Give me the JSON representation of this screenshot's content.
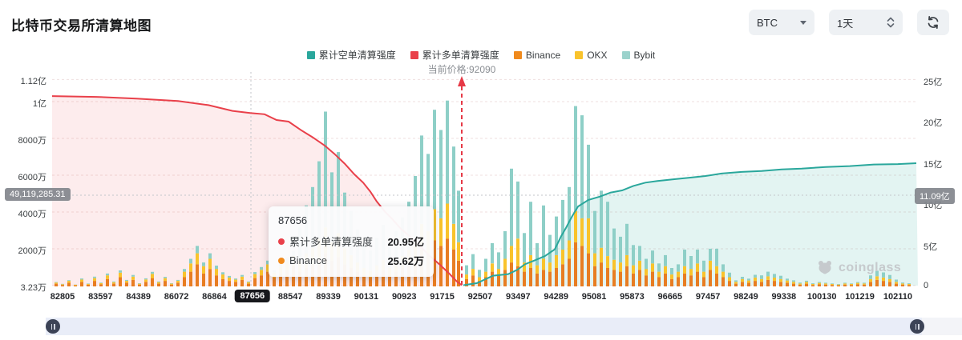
{
  "header": {
    "title": "比特币交易所清算地图",
    "symbol": "BTC",
    "interval": "1天"
  },
  "legend": [
    {
      "label": "累计空单清算强度",
      "color": "#2aa79c"
    },
    {
      "label": "累计多单清算强度",
      "color": "#e9404a"
    },
    {
      "label": "Binance",
      "color": "#f08a1d"
    },
    {
      "label": "OKX",
      "color": "#f9c32c"
    },
    {
      "label": "Bybit",
      "color": "#9bd2cc"
    }
  ],
  "current_price": {
    "value": 92090,
    "label": "当前价格:92090",
    "line_color": "#e63946"
  },
  "crosshair": {
    "x_label": "87656",
    "left_badge": "49,119,285.31",
    "right_badge": "11.09亿"
  },
  "tooltip": {
    "title": "87656",
    "rows": [
      {
        "label": "累计多单清算强度",
        "value": "20.95亿",
        "color": "#e9404a"
      },
      {
        "label": "Binance",
        "value": "25.62万",
        "color": "#f08a1d"
      }
    ]
  },
  "watermark": "coinglass",
  "chart_data": {
    "type": "bar",
    "subtype": "stacked-bars-plus-cumulative-lines",
    "x_axis": {
      "labels": [
        "82805",
        "83597",
        "84389",
        "86072",
        "86864",
        "87656",
        "88547",
        "89339",
        "90131",
        "90923",
        "91715",
        "92507",
        "93497",
        "94289",
        "95081",
        "95873",
        "96665",
        "97457",
        "98249",
        "99338",
        "100130",
        "101219",
        "102110"
      ],
      "highlighted_label": "87656"
    },
    "left_axis": {
      "unit": "万",
      "ticks": [
        {
          "label": "1.12亿",
          "v": 11200
        },
        {
          "label": "1亿",
          "v": 10000
        },
        {
          "label": "8000万",
          "v": 8000
        },
        {
          "label": "6000万",
          "v": 6000
        },
        {
          "label": "4000万",
          "v": 4000
        },
        {
          "label": "2000万",
          "v": 2000
        },
        {
          "label": "3.23万",
          "v": 3.23
        }
      ]
    },
    "right_axis": {
      "unit": "亿",
      "ticks": [
        {
          "label": "25亿",
          "v": 25
        },
        {
          "label": "20亿",
          "v": 20
        },
        {
          "label": "15亿",
          "v": 15
        },
        {
          "label": "10亿",
          "v": 10
        },
        {
          "label": "5亿",
          "v": 5
        },
        {
          "label": "0",
          "v": 0
        }
      ]
    },
    "lines": {
      "cumulative_long": {
        "name": "累计多单清算强度",
        "color": "#e9404a",
        "axis": "right",
        "unit": "亿",
        "points": [
          [
            0,
            23.0
          ],
          [
            55,
            22.9
          ],
          [
            105,
            22.7
          ],
          [
            157,
            22.4
          ],
          [
            195,
            21.9
          ],
          [
            225,
            21.2
          ],
          [
            247,
            20.95
          ],
          [
            265,
            20.8
          ],
          [
            280,
            20.1
          ],
          [
            295,
            19.9
          ],
          [
            310,
            18.9
          ],
          [
            325,
            18.0
          ],
          [
            340,
            17.0
          ],
          [
            352,
            16.0
          ],
          [
            365,
            14.8
          ],
          [
            377,
            13.5
          ],
          [
            388,
            12.5
          ],
          [
            397,
            11.4
          ],
          [
            405,
            10.2
          ],
          [
            415,
            9.0
          ],
          [
            425,
            8.0
          ],
          [
            435,
            6.9
          ],
          [
            447,
            5.9
          ],
          [
            459,
            4.8
          ],
          [
            471,
            3.6
          ],
          [
            483,
            2.6
          ],
          [
            495,
            1.5
          ],
          [
            505,
            0.5
          ],
          [
            511,
            0.05
          ]
        ]
      },
      "cumulative_short": {
        "name": "累计空单清算强度",
        "color": "#2aa79c",
        "axis": "right",
        "unit": "亿",
        "points": [
          [
            513,
            0.05
          ],
          [
            530,
            0.3
          ],
          [
            550,
            1.2
          ],
          [
            569,
            1.4
          ],
          [
            580,
            1.9
          ],
          [
            590,
            2.6
          ],
          [
            603,
            3.1
          ],
          [
            615,
            3.6
          ],
          [
            627,
            4.4
          ],
          [
            635,
            6.0
          ],
          [
            641,
            7.0
          ],
          [
            648,
            8.3
          ],
          [
            656,
            9.6
          ],
          [
            669,
            10.4
          ],
          [
            683,
            10.8
          ],
          [
            697,
            11.3
          ],
          [
            711,
            11.55
          ],
          [
            725,
            12.1
          ],
          [
            740,
            12.5
          ],
          [
            755,
            12.7
          ],
          [
            775,
            12.9
          ],
          [
            795,
            13.1
          ],
          [
            815,
            13.3
          ],
          [
            835,
            13.6
          ],
          [
            860,
            13.8
          ],
          [
            885,
            13.9
          ],
          [
            910,
            14.1
          ],
          [
            935,
            14.2
          ],
          [
            965,
            14.4
          ],
          [
            995,
            14.5
          ],
          [
            1025,
            14.7
          ],
          [
            1055,
            14.75
          ],
          [
            1078,
            14.85
          ]
        ]
      }
    },
    "bars_unit": "万",
    "bars_series_order": [
      "Binance",
      "OKX",
      "Bybit"
    ],
    "bars": [
      [
        5,
        150,
        60,
        30
      ],
      [
        13,
        80,
        40,
        20
      ],
      [
        21,
        200,
        100,
        40
      ],
      [
        29,
        60,
        30,
        10
      ],
      [
        37,
        250,
        120,
        60
      ],
      [
        45,
        90,
        50,
        20
      ],
      [
        53,
        300,
        150,
        80
      ],
      [
        61,
        120,
        60,
        30
      ],
      [
        69,
        400,
        200,
        100
      ],
      [
        77,
        150,
        80,
        40
      ],
      [
        85,
        500,
        250,
        120
      ],
      [
        93,
        200,
        100,
        50
      ],
      [
        101,
        350,
        180,
        90
      ],
      [
        109,
        100,
        50,
        25
      ],
      [
        117,
        250,
        130,
        60
      ],
      [
        125,
        450,
        230,
        110
      ],
      [
        133,
        150,
        80,
        40
      ],
      [
        141,
        300,
        150,
        70
      ],
      [
        149,
        100,
        50,
        25
      ],
      [
        157,
        200,
        100,
        50
      ],
      [
        165,
        500,
        300,
        150
      ],
      [
        173,
        800,
        450,
        250
      ],
      [
        181,
        1200,
        600,
        400
      ],
      [
        189,
        700,
        400,
        200
      ],
      [
        197,
        950,
        550,
        300
      ],
      [
        205,
        600,
        350,
        180
      ],
      [
        213,
        400,
        250,
        120
      ],
      [
        221,
        300,
        180,
        90
      ],
      [
        229,
        250,
        120,
        60
      ],
      [
        237,
        350,
        180,
        90
      ],
      [
        245,
        150,
        80,
        40
      ],
      [
        253,
        450,
        220,
        110
      ],
      [
        261,
        600,
        300,
        150
      ],
      [
        269,
        800,
        400,
        200
      ],
      [
        277,
        500,
        250,
        130
      ],
      [
        285,
        700,
        350,
        180
      ],
      [
        293,
        900,
        450,
        230
      ],
      [
        301,
        1100,
        550,
        280
      ],
      [
        309,
        800,
        600,
        1800
      ],
      [
        317,
        1000,
        800,
        2600
      ],
      [
        325,
        1200,
        900,
        3300
      ],
      [
        333,
        1500,
        1100,
        4200
      ],
      [
        341,
        1800,
        1400,
        6300
      ],
      [
        349,
        1400,
        1000,
        3800
      ],
      [
        357,
        1600,
        1300,
        4400
      ],
      [
        365,
        1200,
        900,
        3000
      ],
      [
        373,
        1000,
        700,
        2400
      ],
      [
        381,
        800,
        500,
        1800
      ],
      [
        389,
        600,
        400,
        1300
      ],
      [
        397,
        500,
        350,
        1100
      ],
      [
        405,
        700,
        450,
        1500
      ],
      [
        413,
        900,
        550,
        1900
      ],
      [
        421,
        600,
        400,
        1300
      ],
      [
        429,
        800,
        500,
        1700
      ],
      [
        437,
        1000,
        650,
        2100
      ],
      [
        445,
        1200,
        800,
        2600
      ],
      [
        453,
        1500,
        1000,
        3500
      ],
      [
        461,
        2000,
        1400,
        4800
      ],
      [
        469,
        1800,
        1200,
        4200
      ],
      [
        477,
        2500,
        1700,
        5400
      ],
      [
        485,
        2200,
        1500,
        4800
      ],
      [
        493,
        2600,
        1900,
        5600
      ],
      [
        501,
        2000,
        1400,
        4200
      ],
      [
        507,
        1400,
        1000,
        2800
      ],
      [
        517,
        400,
        250,
        500
      ],
      [
        525,
        600,
        350,
        800
      ],
      [
        533,
        300,
        200,
        400
      ],
      [
        541,
        500,
        300,
        700
      ],
      [
        549,
        800,
        450,
        1100
      ],
      [
        557,
        600,
        350,
        900
      ],
      [
        565,
        900,
        600,
        1500
      ],
      [
        573,
        1300,
        900,
        4200
      ],
      [
        581,
        1100,
        1500,
        3100
      ],
      [
        589,
        800,
        500,
        1600
      ],
      [
        597,
        1000,
        700,
        2900
      ],
      [
        605,
        700,
        450,
        1200
      ],
      [
        613,
        900,
        600,
        2900
      ],
      [
        621,
        800,
        500,
        1500
      ],
      [
        629,
        1000,
        700,
        2100
      ],
      [
        637,
        1200,
        800,
        2700
      ],
      [
        645,
        1500,
        1000,
        2900
      ],
      [
        653,
        2400,
        1700,
        5700
      ],
      [
        661,
        2200,
        1500,
        5600
      ],
      [
        669,
        1800,
        1900,
        4000
      ],
      [
        677,
        1100,
        700,
        2300
      ],
      [
        685,
        1300,
        800,
        3100
      ],
      [
        693,
        1000,
        650,
        2950
      ],
      [
        701,
        900,
        550,
        1700
      ],
      [
        709,
        800,
        500,
        1400
      ],
      [
        717,
        1100,
        600,
        1700
      ],
      [
        725,
        700,
        450,
        1100
      ],
      [
        733,
        900,
        500,
        800
      ],
      [
        741,
        600,
        350,
        550
      ],
      [
        749,
        800,
        450,
        700
      ],
      [
        757,
        500,
        300,
        450
      ],
      [
        765,
        700,
        400,
        600
      ],
      [
        773,
        400,
        250,
        350
      ],
      [
        781,
        500,
        300,
        400
      ],
      [
        789,
        700,
        400,
        900
      ],
      [
        797,
        600,
        350,
        700
      ],
      [
        805,
        800,
        450,
        750
      ],
      [
        813,
        500,
        300,
        600
      ],
      [
        821,
        900,
        500,
        650
      ],
      [
        829,
        700,
        400,
        950
      ],
      [
        837,
        500,
        300,
        400
      ],
      [
        845,
        300,
        200,
        250
      ],
      [
        853,
        150,
        100,
        80
      ],
      [
        861,
        250,
        150,
        120
      ],
      [
        869,
        200,
        120,
        100
      ],
      [
        877,
        300,
        180,
        150
      ],
      [
        885,
        250,
        150,
        200
      ],
      [
        893,
        350,
        200,
        250
      ],
      [
        901,
        300,
        180,
        200
      ],
      [
        909,
        250,
        150,
        180
      ],
      [
        917,
        200,
        120,
        100
      ],
      [
        925,
        150,
        100,
        80
      ],
      [
        933,
        100,
        60,
        50
      ],
      [
        941,
        150,
        90,
        70
      ],
      [
        949,
        80,
        50,
        40
      ],
      [
        957,
        120,
        70,
        50
      ],
      [
        965,
        100,
        60,
        40
      ],
      [
        973,
        80,
        50,
        30
      ],
      [
        981,
        60,
        40,
        30
      ],
      [
        989,
        100,
        60,
        40
      ],
      [
        997,
        80,
        50,
        30
      ],
      [
        1005,
        120,
        70,
        50
      ],
      [
        1013,
        100,
        60,
        40
      ],
      [
        1021,
        250,
        150,
        200
      ],
      [
        1029,
        350,
        200,
        300
      ],
      [
        1037,
        300,
        180,
        280
      ],
      [
        1045,
        250,
        150,
        220
      ],
      [
        1053,
        150,
        100,
        120
      ],
      [
        1061,
        100,
        60,
        50
      ],
      [
        1069,
        80,
        50,
        40
      ]
    ]
  }
}
